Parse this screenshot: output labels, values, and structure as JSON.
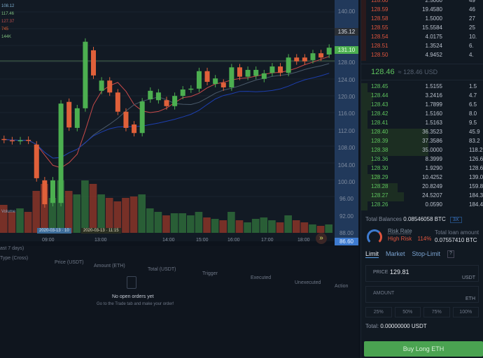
{
  "chart": {
    "left_labels": [
      {
        "text": "108.12",
        "color": "#7fb0d0"
      },
      {
        "text": "117.46",
        "color": "#7fc07f"
      },
      {
        "text": "127.37",
        "color": "#c05050"
      },
      {
        "text": "745",
        "color": "#e06030"
      },
      {
        "text": "144K",
        "color": "#7fc07f"
      }
    ],
    "price_axis": [
      "140.00",
      "128.00",
      "124.00",
      "120.00",
      "116.00",
      "112.00",
      "108.00",
      "104.00",
      "100.00",
      "96.00",
      "92.00",
      "88.00",
      "84.00"
    ],
    "price_tags": {
      "high": "135.12",
      "last": "131.10",
      "low": "86.60"
    },
    "time_labels": [
      "09:00",
      "13:00",
      "14:00",
      "15:00",
      "16:00",
      "17:00",
      "18:00"
    ],
    "date_tags": [
      "2020-03-13 · 10",
      "2020-03-13 · 11:15"
    ],
    "volume_label": "Volume",
    "colors": {
      "up": "#4caf50",
      "down": "#e0603a",
      "ma1": "#c84a4a",
      "ma2": "#1d3fb0",
      "ma3": "#4a5a6a"
    },
    "candles": [
      [
        110.2,
        110.0
      ],
      [
        109.9,
        109.7
      ],
      [
        109.7,
        109.9
      ],
      [
        110.0,
        109.8
      ],
      [
        108.9,
        101.0
      ],
      [
        100.5,
        94.9
      ],
      [
        95.2,
        100.5
      ],
      [
        95.2,
        118.5
      ],
      [
        118.9,
        112.9
      ],
      [
        112.8,
        117.4
      ],
      [
        117.4,
        133.0
      ],
      [
        131.0,
        125.1
      ],
      [
        121.5,
        123.9
      ],
      [
        123.9,
        121.1
      ],
      [
        121.1,
        116.6
      ],
      [
        116.6,
        112.8
      ],
      [
        113.6,
        111.6
      ],
      [
        111.6,
        119.0
      ],
      [
        119.5,
        121.5
      ],
      [
        119.3,
        121.1
      ],
      [
        119.3,
        117.9
      ],
      [
        117.9,
        120.3
      ],
      [
        120.3,
        121.8
      ],
      [
        121.8,
        122.0
      ],
      [
        122.0,
        126.1
      ],
      [
        126.1,
        123.6
      ],
      [
        123.1,
        124.4
      ],
      [
        123.4,
        122.3
      ],
      [
        122.3,
        127.0
      ],
      [
        127.0,
        124.8
      ],
      [
        124.8,
        126.4
      ],
      [
        125.0,
        126.4
      ],
      [
        124.3,
        125.6
      ],
      [
        125.7,
        127.2
      ],
      [
        127.2,
        125.7
      ],
      [
        125.7,
        129.3
      ],
      [
        129.3,
        128.4
      ],
      [
        129.3,
        128.4
      ],
      [
        128.7,
        130.3
      ],
      [
        130.3,
        129.3
      ],
      [
        130.0,
        131.6
      ]
    ],
    "volumes": [
      40,
      30,
      35,
      30,
      60,
      70,
      50,
      75,
      60,
      55,
      75,
      70,
      55,
      50,
      45,
      50,
      52,
      55,
      35,
      30,
      25,
      28,
      28,
      25,
      30,
      22,
      20,
      18,
      30,
      18,
      15,
      20,
      22,
      18,
      15,
      25,
      18,
      15,
      12,
      10,
      12
    ]
  },
  "orders": {
    "tabs_partial": [
      "ast 7 days)",
      "Type (Cross)"
    ],
    "columns": [
      "Price (USDT)",
      "Amount (ETH)",
      "Total (USDT)",
      "Trigger",
      "Executed",
      "Unexecuted",
      "Action"
    ],
    "empty_title": "No open orders yet",
    "empty_sub": "Go to the Trade tab and make your order!"
  },
  "orderbook": {
    "asks": [
      {
        "price": "128.60",
        "amount": "2.5000",
        "total": "49"
      },
      {
        "price": "128.59",
        "amount": "19.4580",
        "total": "46"
      },
      {
        "price": "128.58",
        "amount": "1.5000",
        "total": "27"
      },
      {
        "price": "128.55",
        "amount": "15.5584",
        "total": "25"
      },
      {
        "price": "128.54",
        "amount": "4.0175",
        "total": "10."
      },
      {
        "price": "128.51",
        "amount": "1.3524",
        "total": "6."
      },
      {
        "price": "128.50",
        "amount": "4.9452",
        "total": "4."
      }
    ],
    "mid_price": "128.46",
    "mid_usd": "≈ 128.46 USD",
    "bids": [
      {
        "price": "128.45",
        "amount": "1.5155",
        "total": "1.5"
      },
      {
        "price": "128.44",
        "amount": "3.2416",
        "total": "4.7"
      },
      {
        "price": "128.43",
        "amount": "1.7899",
        "total": "6.5"
      },
      {
        "price": "128.42",
        "amount": "1.5160",
        "total": "8.0"
      },
      {
        "price": "128.41",
        "amount": "1.5163",
        "total": "9.5"
      },
      {
        "price": "128.40",
        "amount": "36.3523",
        "total": "45.9"
      },
      {
        "price": "128.39",
        "amount": "37.3586",
        "total": "83.2"
      },
      {
        "price": "128.38",
        "amount": "35.0000",
        "total": "118.2"
      },
      {
        "price": "128.36",
        "amount": "8.3999",
        "total": "126.6"
      },
      {
        "price": "128.30",
        "amount": "1.9290",
        "total": "128.6"
      },
      {
        "price": "128.29",
        "amount": "10.4252",
        "total": "139.0"
      },
      {
        "price": "128.28",
        "amount": "20.8249",
        "total": "159.8"
      },
      {
        "price": "128.27",
        "amount": "24.5207",
        "total": "184.3"
      },
      {
        "price": "128.26",
        "amount": "0.0590",
        "total": "184.4"
      }
    ],
    "bid_depth": [
      0.05,
      0.1,
      0.08,
      0.05,
      0.05,
      0.55,
      0.55,
      0.55,
      0.1,
      0.05,
      0.15,
      0.3,
      0.35,
      0.05
    ]
  },
  "account": {
    "balance_label": "Total Balances",
    "balance": "0.08546058 BTC",
    "leverage": "3X",
    "risk_label": "Risk Rate",
    "risk_level": "High Risk",
    "risk_pct": "114%",
    "loan_label": "Total loan amount",
    "loan": "0.07557410 BTC"
  },
  "trade": {
    "tabs": [
      "Limit",
      "Market",
      "Stop-Limit"
    ],
    "price_label": "PRICE",
    "price_value": "129.81",
    "price_unit": "USDT",
    "amount_label": "AMOUNT",
    "amount_unit": "ETH",
    "pcts": [
      "25%",
      "50%",
      "75%",
      "100%"
    ],
    "total_label": "Total:",
    "total_value": "0.00000000 USDT",
    "buy_label": "Buy Long ETH"
  }
}
